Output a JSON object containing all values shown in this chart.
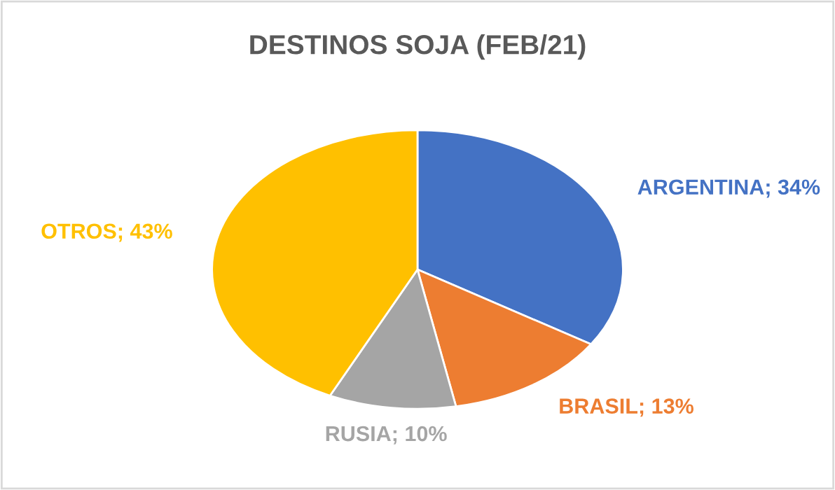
{
  "chart_data": {
    "type": "pie",
    "title": "DESTINOS SOJA (FEB/21)",
    "categories": [
      "ARGENTINA",
      "BRASIL",
      "RUSIA",
      "OTROS"
    ],
    "values": [
      34,
      13,
      10,
      43
    ],
    "value_labels": [
      "34%",
      "13%",
      "10%",
      "43%"
    ],
    "colors": [
      "#4472c4",
      "#ed7d31",
      "#a5a5a5",
      "#ffc000"
    ],
    "legend": false
  }
}
